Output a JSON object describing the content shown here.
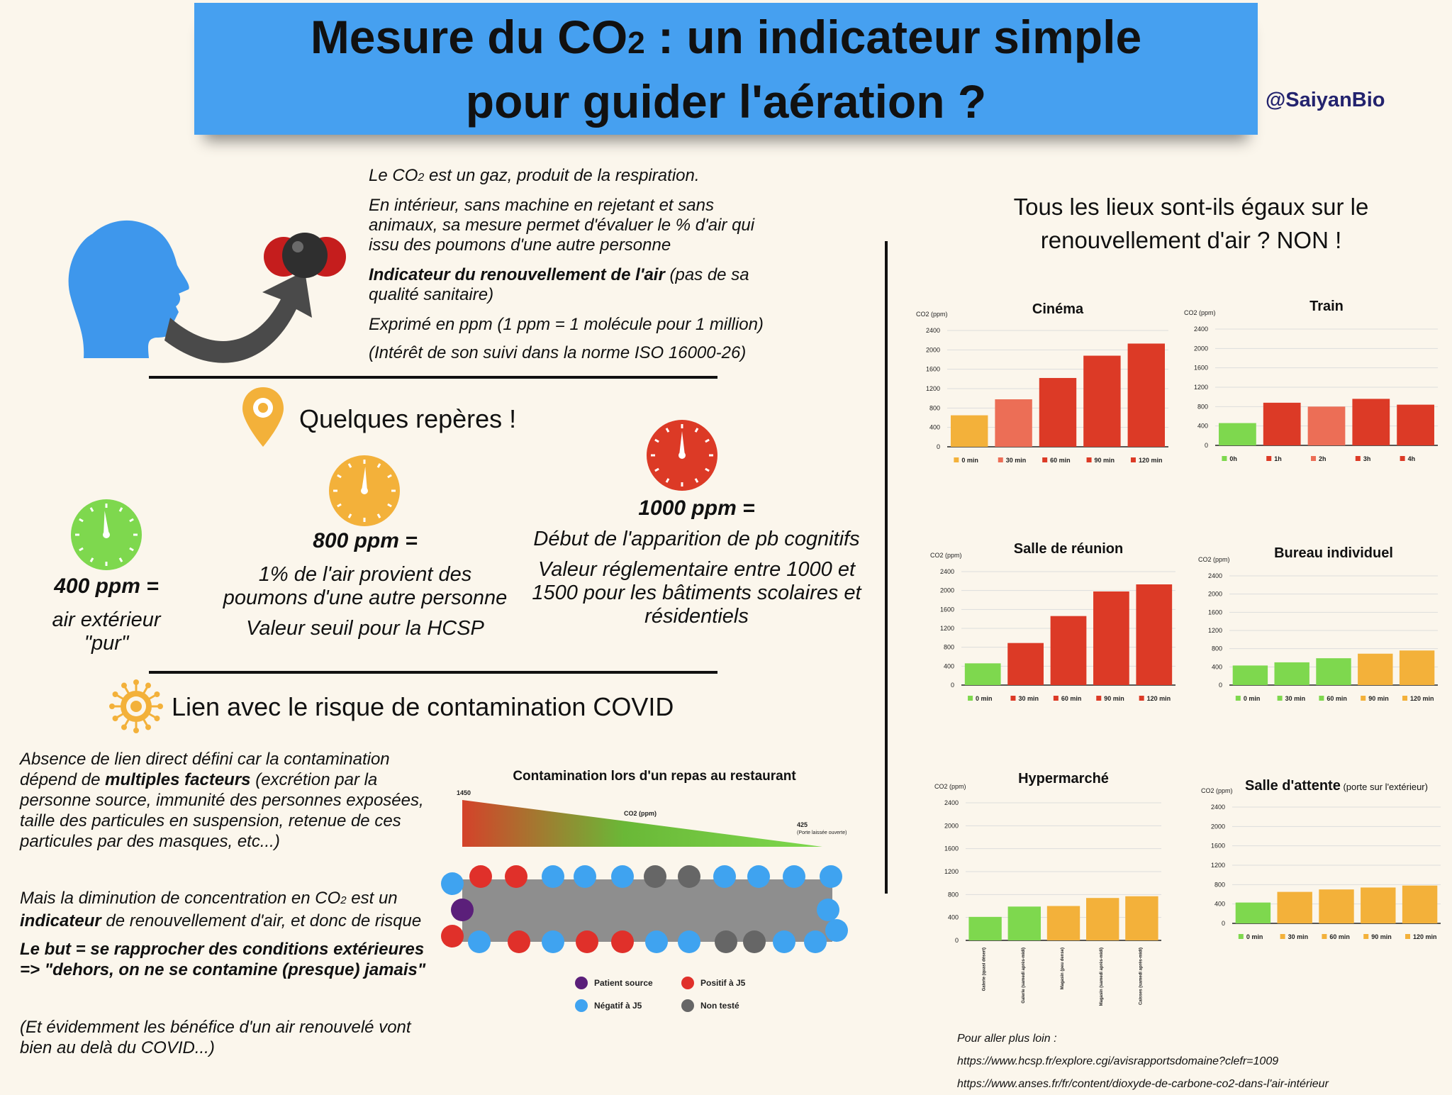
{
  "header": {
    "title_line1_a": "Mesure du CO",
    "title_line1_sub": "2",
    "title_line1_b": " : un indicateur simple",
    "title_line2": "pour guider l'aération ?",
    "handle": "@SaiyanBio"
  },
  "intro": {
    "l1_a": "Le CO",
    "l1_sub": "2",
    "l1_b": " est un gaz, produit de la respiration.",
    "l2": "En intérieur, sans machine en rejetant et sans animaux, sa mesure permet d'évaluer le % d'air qui issu des poumons d'une autre personne",
    "l3_bold": "Indicateur du renouvellement de l'air",
    "l3_rest": " (pas de sa qualité sanitaire)",
    "l4": "Exprimé en ppm (1 ppm = 1 molécule pour 1 million)",
    "l5": "(Intérêt de son suivi dans la norme ISO 16000-26)"
  },
  "reperes": {
    "title": "Quelques repères !",
    "p400_value": "400 ppm =",
    "p400_desc": "air extérieur \"pur\"",
    "p800_value": "800 ppm =",
    "p800_desc1": "1% de l'air provient des poumons d'une autre personne",
    "p800_desc2": "Valeur seuil pour la HCSP",
    "p1000_value": "1000 ppm =",
    "p1000_desc1": "Début de l'apparition de pb cognitifs",
    "p1000_desc2": "Valeur réglementaire entre 1000 et 1500 pour les bâtiments scolaires et résidentiels"
  },
  "covid": {
    "title": "Lien avec le risque de contamination COVID",
    "p1_a": "Absence de lien direct défini car la contamination dépend de ",
    "p1_bold": "multiples facteurs",
    "p1_b": " (excrétion par la personne source, immunité des personnes exposées, taille des particules en suspension, retenue de ces particules par des masques, etc...)",
    "p2_a": "Mais la diminution de concentration en CO",
    "p2_sub": "2",
    "p2_b": " est un ",
    "p2_bold": "indicateur",
    "p2_c": " de renouvellement d'air, et donc de risque",
    "p3_l1": "Le but = se rapprocher des conditions extérieures",
    "p3_l2": "=> \"dehors, on ne se contamine (presque) jamais\"",
    "p4": "(Et évidemment les bénéfice d'un air renouvelé vont bien au delà du COVID...)"
  },
  "restaurant": {
    "title": "Contamination lors d'un repas au restaurant",
    "co2_label": "CO2 (ppm)",
    "high_value": "1450",
    "low_value": "425",
    "low_note": "(Porte laissée ouverte)",
    "legend": {
      "source": "Patient source",
      "positive": "Positif à J5",
      "negative": "Négatif à J5",
      "untested": "Non testé"
    },
    "colors": {
      "source": "#5b1f7a",
      "positive": "#e0302a",
      "negative": "#3fa3f0",
      "untested": "#666666"
    }
  },
  "right": {
    "title_line1": "Tous les lieux sont-ils égaux sur le",
    "title_line2": "renouvellement d'air ? NON !",
    "refs_title": "Pour aller plus loin :",
    "ref1": "https://www.hcsp.fr/explore.cgi/avisrapportsdomaine?clefr=1009",
    "ref2": "https://www.anses.fr/fr/content/dioxyde-de-carbone-co2-dans-l'air-intérieur"
  },
  "chart_data": [
    {
      "type": "bar",
      "title": "Cinéma",
      "ylabel": "CO2 (ppm)",
      "ylim": [
        0,
        2400
      ],
      "yticks": [
        0,
        400,
        800,
        1200,
        1600,
        2000,
        2400
      ],
      "categories": [
        "0 min",
        "30 min",
        "60 min",
        "90 min",
        "120 min"
      ],
      "values": [
        650,
        980,
        1420,
        1880,
        2130
      ],
      "colors": [
        "#f3b13a",
        "#ec6e56",
        "#dc3a26",
        "#dc3a26",
        "#dc3a26"
      ]
    },
    {
      "type": "bar",
      "title": "Train",
      "ylabel": "CO2 (ppm)",
      "ylim": [
        0,
        2400
      ],
      "yticks": [
        0,
        400,
        800,
        1200,
        1600,
        2000,
        2400
      ],
      "categories": [
        "0h",
        "1h",
        "2h",
        "3h",
        "4h"
      ],
      "values": [
        460,
        880,
        800,
        960,
        840
      ],
      "colors": [
        "#7ed84e",
        "#dc3a26",
        "#ec6e56",
        "#dc3a26",
        "#dc3a26"
      ]
    },
    {
      "type": "bar",
      "title": "Salle de réunion",
      "ylabel": "CO2 (ppm)",
      "ylim": [
        0,
        2400
      ],
      "yticks": [
        0,
        400,
        800,
        1200,
        1600,
        2000,
        2400
      ],
      "categories": [
        "0 min",
        "30 min",
        "60 min",
        "90 min",
        "120 min"
      ],
      "values": [
        460,
        890,
        1460,
        1980,
        2130
      ],
      "colors": [
        "#7ed84e",
        "#dc3a26",
        "#dc3a26",
        "#dc3a26",
        "#dc3a26"
      ]
    },
    {
      "type": "bar",
      "title": "Bureau individuel",
      "ylabel": "CO2 (ppm)",
      "ylim": [
        0,
        2400
      ],
      "yticks": [
        0,
        400,
        800,
        1200,
        1600,
        2000,
        2400
      ],
      "categories": [
        "0 min",
        "30 min",
        "60 min",
        "90 min",
        "120 min"
      ],
      "values": [
        430,
        500,
        590,
        690,
        760
      ],
      "colors": [
        "#7ed84e",
        "#7ed84e",
        "#7ed84e",
        "#f3b13a",
        "#f3b13a"
      ]
    },
    {
      "type": "bar",
      "title": "Hypermarché",
      "ylabel": "CO2 (ppm)",
      "ylim": [
        0,
        2400
      ],
      "yticks": [
        0,
        400,
        800,
        1200,
        1600,
        2000,
        2400
      ],
      "categories": [
        "Galerie (quasi désert)",
        "Galerie (samedi après-midi)",
        "Magasin (peu dense)",
        "Magasin (samedi après-midi)",
        "Caisses (samedi après-midi)"
      ],
      "values": [
        410,
        590,
        600,
        740,
        770
      ],
      "colors": [
        "#7ed84e",
        "#7ed84e",
        "#f3b13a",
        "#f3b13a",
        "#f3b13a"
      ]
    },
    {
      "type": "bar",
      "title": "Salle d'attente",
      "subtitle": "(porte sur l'extérieur)",
      "ylabel": "CO2 (ppm)",
      "ylim": [
        0,
        2400
      ],
      "yticks": [
        0,
        400,
        800,
        1200,
        1600,
        2000,
        2400
      ],
      "categories": [
        "0 min",
        "30 min",
        "60 min",
        "90 min",
        "120 min"
      ],
      "values": [
        430,
        650,
        700,
        740,
        780
      ],
      "colors": [
        "#7ed84e",
        "#f3b13a",
        "#f3b13a",
        "#f3b13a",
        "#f3b13a"
      ]
    }
  ],
  "palette": {
    "banner": "#46a0f0",
    "green": "#7ed84e",
    "yellow": "#f3b13a",
    "red": "#dc3a26",
    "head_blue": "#3e97ec",
    "arrow": "#4a4a4a"
  }
}
